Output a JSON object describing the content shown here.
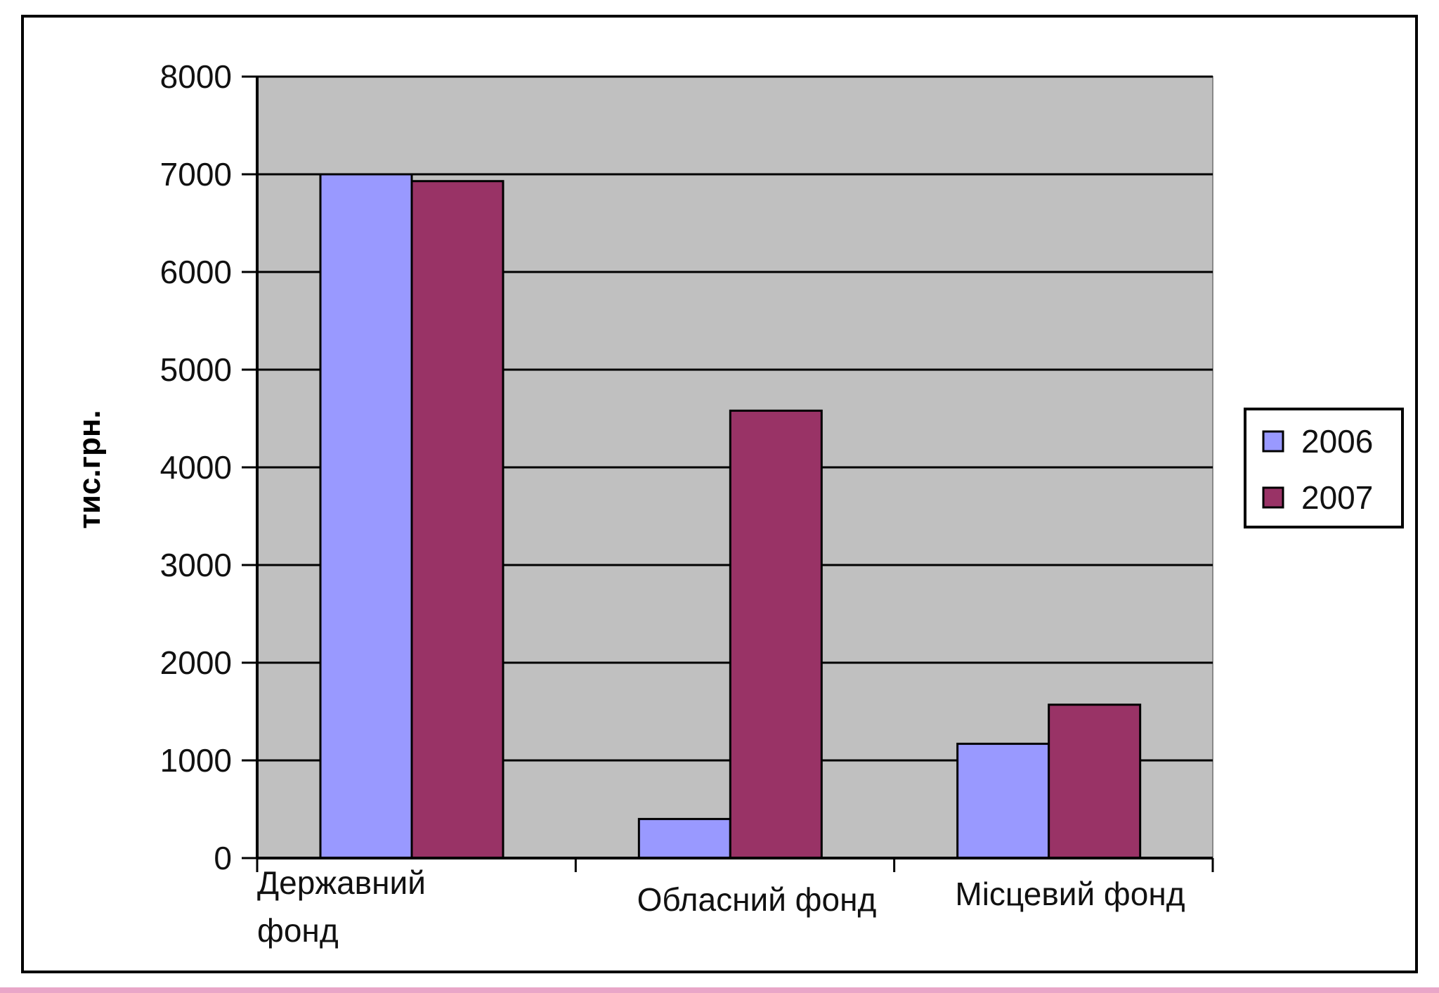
{
  "chart_data": {
    "type": "bar",
    "title": "",
    "xlabel": "",
    "ylabel": "тис.грн.",
    "ylim": [
      0,
      8000
    ],
    "yticks": [
      0,
      1000,
      2000,
      3000,
      4000,
      5000,
      6000,
      7000,
      8000
    ],
    "categories": [
      "Державний фонд",
      "Обласний фонд",
      "Місцевий фонд"
    ],
    "category_lines": [
      [
        "Державний",
        "фонд"
      ],
      [
        "Обласний фонд"
      ],
      [
        "Місцевий фонд"
      ]
    ],
    "series": [
      {
        "name": "2006",
        "values": [
          7000,
          400,
          1170
        ],
        "color": "#9999ff"
      },
      {
        "name": "2007",
        "values": [
          6930,
          4580,
          1570
        ],
        "color": "#993366"
      }
    ],
    "grid": true,
    "plot_background": "#c0c0c0",
    "legend_position": "right"
  }
}
